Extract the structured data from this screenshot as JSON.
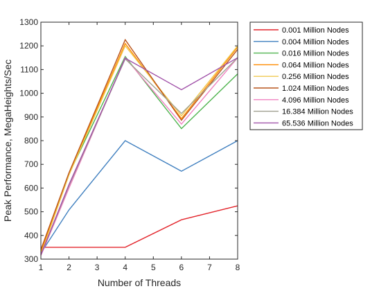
{
  "chart_data": {
    "type": "line",
    "title": "",
    "xlabel": "Number of Threads",
    "ylabel": "Peak Performance, MegaHeights/Sec",
    "xlim": [
      1,
      8
    ],
    "ylim": [
      300,
      1300
    ],
    "xticks": [
      1,
      2,
      3,
      4,
      5,
      6,
      7,
      8
    ],
    "yticks": [
      300,
      400,
      500,
      600,
      700,
      800,
      900,
      1000,
      1100,
      1200,
      1300
    ],
    "grid": false,
    "legend_position": "outside top-right",
    "x": [
      1,
      2,
      4,
      6,
      8
    ],
    "series": [
      {
        "name": "0.001 Million Nodes",
        "color": "#e3242b",
        "values": [
          350,
          350,
          350,
          466,
          525
        ]
      },
      {
        "name": "0.004 Million Nodes",
        "color": "#3f7fbf",
        "values": [
          325,
          508,
          800,
          671,
          800
        ]
      },
      {
        "name": "0.016 Million Nodes",
        "color": "#4db34d",
        "values": [
          322,
          660,
          1155,
          851,
          1082
        ]
      },
      {
        "name": "0.064 Million Nodes",
        "color": "#ff8c00",
        "values": [
          330,
          662,
          1210,
          893,
          1195
        ]
      },
      {
        "name": "0.256 Million Nodes",
        "color": "#f0c850",
        "values": [
          320,
          655,
          1200,
          905,
          1200
        ]
      },
      {
        "name": "1.024 Million Nodes",
        "color": "#b9541b",
        "values": [
          340,
          665,
          1226,
          886,
          1185
        ]
      },
      {
        "name": "4.096 Million Nodes",
        "color": "#f080c0",
        "values": [
          315,
          600,
          1150,
          870,
          1150
        ]
      },
      {
        "name": "16.384 Million Nodes",
        "color": "#a0a090",
        "values": [
          318,
          610,
          1145,
          915,
          1150
        ]
      },
      {
        "name": "65.536 Million Nodes",
        "color": "#a050a8",
        "values": [
          318,
          615,
          1148,
          1015,
          1150
        ]
      }
    ]
  }
}
